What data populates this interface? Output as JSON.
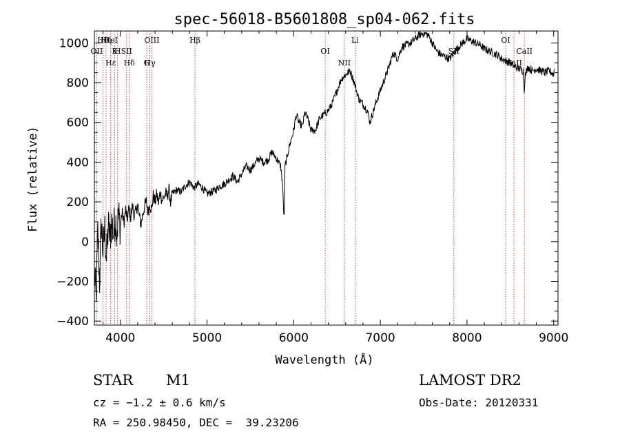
{
  "chart_data": {
    "type": "line",
    "title": "spec-56018-B5601808_sp04-062.fits",
    "xlabel": "Wavelength (Å)",
    "ylabel": "Flux (relative)",
    "xlim": [
      3700,
      9050
    ],
    "ylim": [
      -420,
      1060
    ],
    "xticks": [
      4000,
      5000,
      6000,
      7000,
      8000,
      9000
    ],
    "yticks": [
      -400,
      -200,
      0,
      200,
      400,
      600,
      800,
      1000
    ],
    "grid": false,
    "series": [
      {
        "values_x": [
          3700,
          3720,
          3740,
          3760,
          3780,
          3800,
          3820,
          3840,
          3860,
          3880,
          3900,
          3920,
          3940,
          3960,
          3980,
          4000,
          4020,
          4040,
          4060,
          4080,
          4100,
          4120,
          4140,
          4160,
          4180,
          4200,
          4220,
          4240,
          4260,
          4280,
          4300,
          4320,
          4340,
          4360,
          4380,
          4400,
          4420,
          4440,
          4460,
          4480,
          4500,
          4520,
          4540,
          4560,
          4580,
          4600,
          4650,
          4700,
          4750,
          4800,
          4850,
          4900,
          4950,
          5000,
          5050,
          5100,
          5150,
          5200,
          5250,
          5300,
          5350,
          5400,
          5450,
          5500,
          5550,
          5600,
          5650,
          5700,
          5750,
          5800,
          5850,
          5870,
          5880,
          5890,
          5900,
          5920,
          5950,
          6000,
          6030,
          6060,
          6100,
          6130,
          6160,
          6200,
          6250,
          6300,
          6350,
          6400,
          6450,
          6500,
          6550,
          6600,
          6650,
          6700,
          6750,
          6800,
          6850,
          6880,
          6900,
          6950,
          7000,
          7050,
          7100,
          7150,
          7200,
          7250,
          7300,
          7350,
          7400,
          7450,
          7500,
          7550,
          7600,
          7650,
          7700,
          7750,
          7800,
          7850,
          7900,
          7950,
          8000,
          8050,
          8100,
          8150,
          8200,
          8250,
          8300,
          8350,
          8400,
          8450,
          8500,
          8550,
          8600,
          8650,
          8660,
          8670,
          8700,
          8750,
          8800,
          8850,
          8900,
          8950,
          9000,
          9010
        ],
        "values_y": [
          -150,
          -300,
          50,
          -200,
          100,
          -50,
          60,
          -100,
          80,
          20,
          100,
          40,
          120,
          60,
          130,
          80,
          150,
          90,
          160,
          110,
          170,
          120,
          180,
          130,
          150,
          190,
          120,
          90,
          140,
          180,
          200,
          150,
          190,
          160,
          230,
          200,
          240,
          190,
          250,
          210,
          220,
          240,
          230,
          260,
          200,
          240,
          260,
          250,
          280,
          300,
          270,
          290,
          270,
          240,
          250,
          260,
          280,
          290,
          310,
          330,
          300,
          340,
          380,
          360,
          390,
          420,
          400,
          410,
          450,
          420,
          380,
          300,
          200,
          100,
          380,
          420,
          480,
          560,
          640,
          600,
          580,
          650,
          620,
          560,
          560,
          620,
          640,
          660,
          700,
          760,
          820,
          840,
          860,
          800,
          720,
          690,
          660,
          600,
          630,
          700,
          760,
          820,
          880,
          950,
          920,
          980,
          990,
          1000,
          1020,
          1040,
          1050,
          1040,
          1000,
          960,
          940,
          930,
          920,
          950,
          980,
          1000,
          1020,
          1010,
          1000,
          990,
          970,
          960,
          950,
          940,
          920,
          910,
          900,
          880,
          870,
          860,
          760,
          830,
          880,
          860,
          870,
          860,
          850,
          860,
          840,
          880
        ]
      }
    ],
    "line_markers": [
      {
        "label": "Hθ",
        "x": 3798
      },
      {
        "label": "K",
        "x": 3934
      },
      {
        "label": "Hδ",
        "x": 4102
      },
      {
        "label": "OIII",
        "x": 4363
      },
      {
        "label": "OII",
        "x": 3727
      },
      {
        "label": "Hε",
        "x": 3889
      },
      {
        "label": "HeI",
        "x": 3889
      },
      {
        "label": "SII",
        "x": 4072
      },
      {
        "label": "Hγ",
        "x": 4340
      },
      {
        "label": "Hη",
        "x": 3835
      },
      {
        "label": "H",
        "x": 3968
      },
      {
        "label": "G",
        "x": 4304
      },
      {
        "label": "Hβ",
        "x": 4861
      },
      {
        "label": "OI",
        "x": 6364
      },
      {
        "label": "NII",
        "x": 6584
      },
      {
        "label": "Li",
        "x": 6708
      },
      {
        "label": "SII",
        "x": 7848
      },
      {
        "label": "CaII",
        "x": 8542
      },
      {
        "label": "OI",
        "x": 8446
      },
      {
        "label": "CaII",
        "x": 8662
      }
    ]
  },
  "info": {
    "object_type": "STAR",
    "subclass": "M1",
    "survey": "LAMOST DR2",
    "cz": "cz = −1.2 ± 0.6 km/s",
    "obs_date": "Obs-Date: 20120331",
    "coords": "RA = 250.98450, DEC =  39.23206"
  }
}
